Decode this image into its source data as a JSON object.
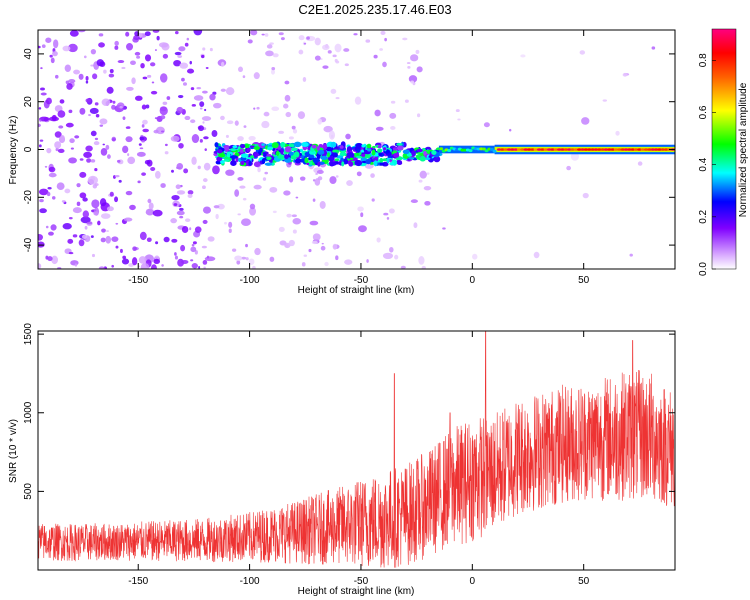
{
  "title": "C2E1.2025.235.17.46.E03",
  "chart_data": [
    {
      "type": "heatmap",
      "xlabel": "Height of straight line (km)",
      "ylabel": "Frequency (Hz)",
      "xlim": [
        -195,
        91
      ],
      "ylim": [
        -50,
        50
      ],
      "xticks": [
        -150,
        -100,
        -50,
        0,
        50
      ],
      "yticks": [
        -40,
        -20,
        0,
        20,
        40
      ],
      "colorbar": {
        "label": "Normalized spectral amplitude",
        "range": [
          0.0,
          0.92
        ],
        "ticks": [
          "0.0",
          "0.2",
          "0.4",
          "0.6",
          "0.8"
        ],
        "colormap": [
          "#ffffff",
          "#a000ff",
          "#0000ff",
          "#00ffff",
          "#00ff00",
          "#ffff00",
          "#ff8000",
          "#ff0000",
          "#ff0080"
        ]
      },
      "features": [
        {
          "x_range": [
            -195,
            -115
          ],
          "freq_range": [
            -50,
            50
          ],
          "amplitude": 0.12
        },
        {
          "x_range": [
            -115,
            -20
          ],
          "freq_range": [
            -50,
            50
          ],
          "amplitude": 0.05
        },
        {
          "x_range": [
            -115,
            -30
          ],
          "freq_range": [
            -10,
            3
          ],
          "amplitude": 0.3
        },
        {
          "x_range": [
            -15,
            10
          ],
          "freq_range": [
            -2,
            2
          ],
          "amplitude": 0.5
        },
        {
          "x_range": [
            10,
            91
          ],
          "freq_range": [
            -1,
            1
          ],
          "amplitude": 0.85
        }
      ]
    },
    {
      "type": "line",
      "xlabel": "Height of straight line (km)",
      "ylabel": "SNR (10 * v/v)",
      "xlim": [
        -195,
        91
      ],
      "ylim": [
        0,
        1520
      ],
      "xticks": [
        -150,
        -100,
        -50,
        0,
        50
      ],
      "yticks": [
        500,
        1000,
        1500
      ],
      "color": "#ee3333",
      "series": [
        {
          "x": [
            -195,
            -180,
            -160,
            -140,
            -120,
            -100,
            -80,
            -60,
            -40,
            -30,
            -20,
            -10,
            0,
            10,
            20,
            30,
            40,
            50,
            60,
            70,
            80,
            91
          ],
          "mean": [
            180,
            175,
            180,
            185,
            190,
            210,
            240,
            280,
            320,
            350,
            420,
            520,
            580,
            620,
            720,
            760,
            800,
            820,
            840,
            860,
            850,
            760
          ],
          "spread": [
            120,
            120,
            120,
            130,
            140,
            160,
            200,
            250,
            320,
            330,
            340,
            380,
            400,
            380,
            380,
            380,
            380,
            380,
            400,
            420,
            420,
            380
          ],
          "spikes": [
            [
              -35,
              1250
            ],
            [
              6,
              1520
            ],
            [
              -10,
              1000
            ],
            [
              72,
              1460
            ]
          ]
        }
      ]
    }
  ]
}
